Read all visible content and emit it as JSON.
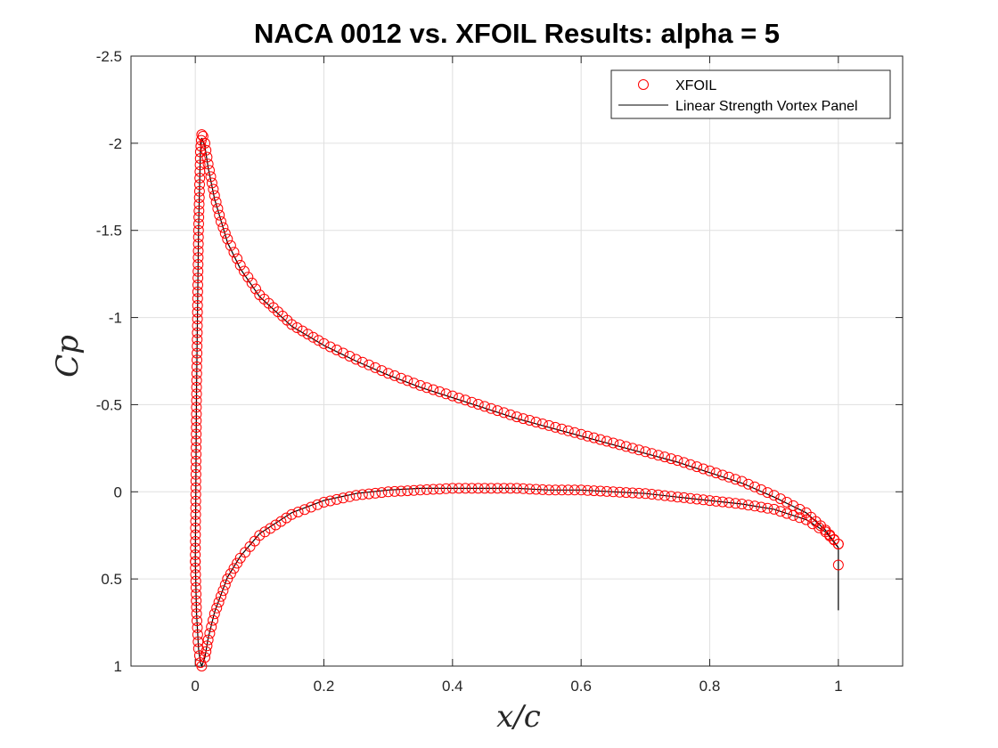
{
  "chart_data": {
    "type": "scatter",
    "title": "NACA 0012 vs. XFOIL Results: alpha = 5",
    "xlabel": "x/c",
    "ylabel": "Cp",
    "xlim": [
      -0.1,
      1.1
    ],
    "ylim": [
      -2.5,
      1
    ],
    "y_reversed": true,
    "grid": true,
    "legend_position": "top-right",
    "xticks": [
      "0",
      "0.2",
      "0.4",
      "0.6",
      "0.8",
      "1"
    ],
    "yticks": [
      "-2.5",
      "-2",
      "-1.5",
      "-1",
      "-0.5",
      "0",
      "0.5",
      "1"
    ],
    "series": [
      {
        "name": "XFOIL",
        "style": "markers",
        "color": "#ff0000",
        "upper_surface": {
          "x": [
            0.0,
            0.002,
            0.005,
            0.008,
            0.01,
            0.012,
            0.015,
            0.02,
            0.03,
            0.04,
            0.05,
            0.07,
            0.1,
            0.15,
            0.2,
            0.25,
            0.3,
            0.35,
            0.4,
            0.45,
            0.5,
            0.55,
            0.6,
            0.65,
            0.7,
            0.75,
            0.8,
            0.85,
            0.9,
            0.95,
            0.98,
            1.0
          ],
          "y": [
            0.4,
            -0.6,
            -1.5,
            -1.95,
            -2.05,
            -2.04,
            -2.0,
            -1.88,
            -1.7,
            -1.55,
            -1.45,
            -1.3,
            -1.13,
            -0.96,
            -0.85,
            -0.76,
            -0.68,
            -0.61,
            -0.55,
            -0.49,
            -0.43,
            -0.38,
            -0.33,
            -0.28,
            -0.23,
            -0.18,
            -0.12,
            -0.06,
            0.02,
            0.12,
            0.22,
            0.3
          ]
        },
        "lower_surface": {
          "x": [
            0.0,
            0.002,
            0.005,
            0.008,
            0.01,
            0.015,
            0.02,
            0.03,
            0.05,
            0.07,
            0.1,
            0.15,
            0.2,
            0.25,
            0.3,
            0.35,
            0.4,
            0.45,
            0.5,
            0.55,
            0.6,
            0.65,
            0.7,
            0.75,
            0.8,
            0.85,
            0.9,
            0.95,
            0.98,
            1.0
          ],
          "y": [
            0.4,
            0.7,
            0.9,
            0.98,
            1.0,
            0.95,
            0.85,
            0.7,
            0.5,
            0.38,
            0.25,
            0.13,
            0.06,
            0.02,
            0.0,
            -0.01,
            -0.02,
            -0.02,
            -0.02,
            -0.01,
            -0.01,
            0.0,
            0.01,
            0.03,
            0.05,
            0.07,
            0.1,
            0.16,
            0.23,
            0.3
          ]
        },
        "trailing_point": {
          "x": 1.0,
          "y": 0.42
        }
      },
      {
        "name": "Linear Strength Vortex Panel",
        "style": "line",
        "color": "#000000",
        "upper_surface": {
          "x": [
            0.0,
            0.002,
            0.005,
            0.008,
            0.01,
            0.015,
            0.02,
            0.03,
            0.05,
            0.07,
            0.1,
            0.15,
            0.2,
            0.25,
            0.3,
            0.35,
            0.4,
            0.45,
            0.5,
            0.55,
            0.6,
            0.65,
            0.7,
            0.75,
            0.8,
            0.85,
            0.9,
            0.95,
            0.98,
            1.0
          ],
          "y": [
            0.4,
            -0.6,
            -1.5,
            -1.95,
            -2.03,
            -1.98,
            -1.86,
            -1.68,
            -1.43,
            -1.28,
            -1.12,
            -0.95,
            -0.84,
            -0.75,
            -0.67,
            -0.6,
            -0.54,
            -0.48,
            -0.42,
            -0.37,
            -0.32,
            -0.27,
            -0.22,
            -0.17,
            -0.11,
            -0.05,
            0.03,
            0.12,
            0.22,
            0.32
          ]
        },
        "lower_surface": {
          "x": [
            0.0,
            0.002,
            0.005,
            0.008,
            0.01,
            0.015,
            0.02,
            0.03,
            0.05,
            0.07,
            0.1,
            0.15,
            0.2,
            0.25,
            0.3,
            0.35,
            0.4,
            0.45,
            0.5,
            0.55,
            0.6,
            0.65,
            0.7,
            0.75,
            0.8,
            0.85,
            0.9,
            0.95,
            0.98,
            1.0
          ],
          "y": [
            0.4,
            0.7,
            0.9,
            0.98,
            1.0,
            0.95,
            0.84,
            0.69,
            0.49,
            0.37,
            0.24,
            0.12,
            0.05,
            0.01,
            -0.01,
            -0.02,
            -0.02,
            -0.02,
            -0.02,
            -0.01,
            -0.01,
            0.0,
            0.01,
            0.03,
            0.05,
            0.07,
            0.1,
            0.16,
            0.23,
            0.32
          ]
        },
        "trailing_segment": {
          "x": [
            1.0,
            1.0
          ],
          "y": [
            0.32,
            0.68
          ]
        }
      }
    ]
  }
}
